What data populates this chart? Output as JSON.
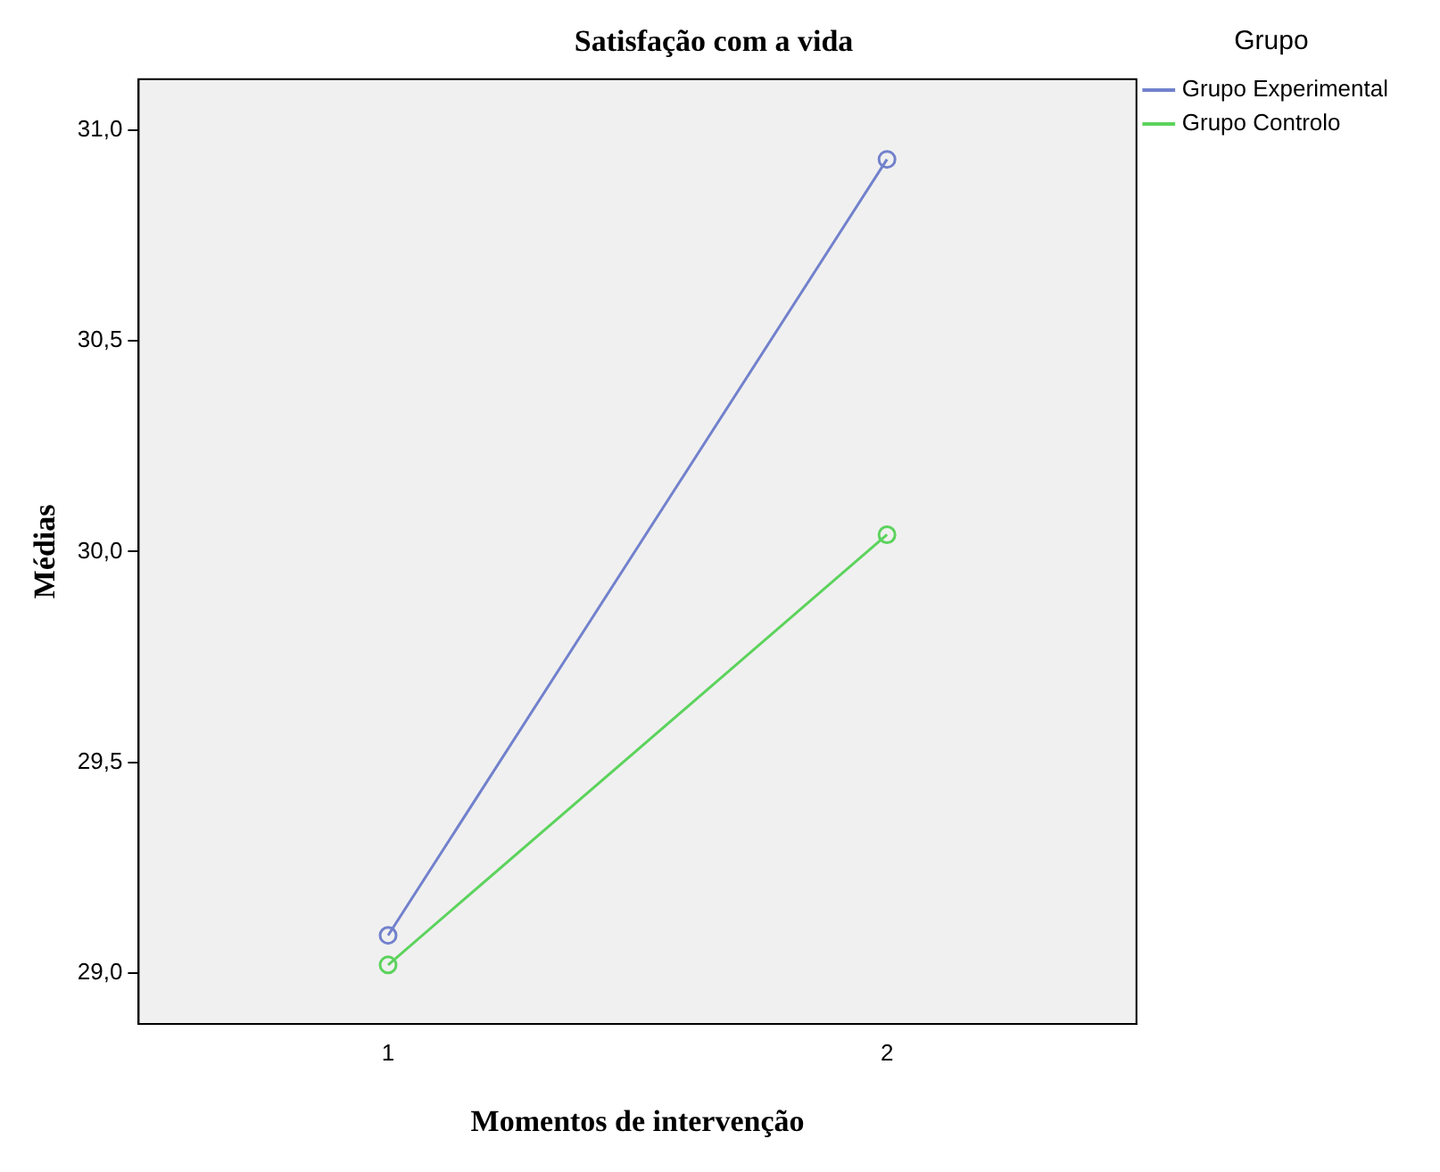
{
  "chart_data": {
    "type": "line",
    "title": "Satisfação com a vida",
    "xlabel": "Momentos de intervenção",
    "ylabel": "Médias",
    "legend_title": "Grupo",
    "categories": [
      "1",
      "2"
    ],
    "series": [
      {
        "name": "Grupo Experimental",
        "color": "#7281cc",
        "values": [
          29.09,
          30.93
        ]
      },
      {
        "name": "Grupo Controlo",
        "color": "#5cd35c",
        "values": [
          29.02,
          30.04
        ]
      }
    ],
    "ylim": [
      28.88,
      31.12
    ],
    "yticks": [
      {
        "value": 29,
        "label": "29,0"
      },
      {
        "value": 29.5,
        "label": "29,5"
      },
      {
        "value": 30,
        "label": "30,0"
      },
      {
        "value": 30.5,
        "label": "30,5"
      },
      {
        "value": 31,
        "label": "31,0"
      }
    ],
    "grid": false,
    "legend": "top right",
    "marker": "circle",
    "line_style": "solid"
  }
}
